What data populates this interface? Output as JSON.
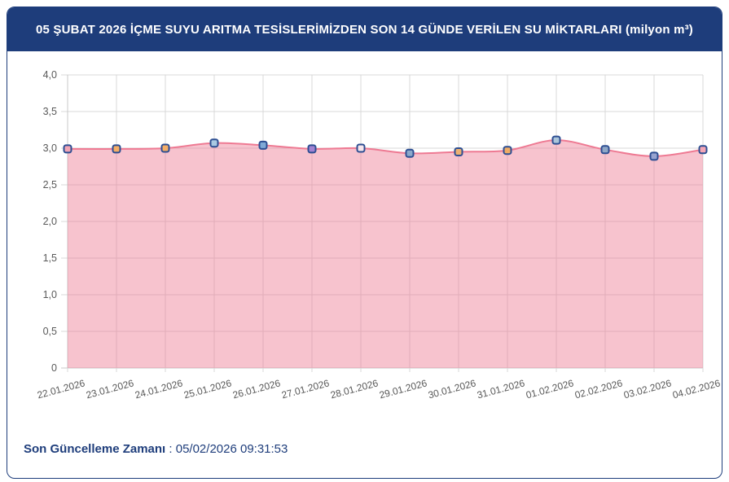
{
  "header": {
    "title": "05 ŞUBAT 2026 İÇME SUYU ARITMA TESİSLERİMİZDEN SON 14 GÜNDE VERİLEN SU MİKTARLARI (milyon m³)"
  },
  "footer": {
    "label": "Son Güncelleme Zamanı",
    "separator": " : ",
    "value": "05/02/2026 09:31:53"
  },
  "colors": {
    "header_bg": "#1e3d7b",
    "header_text": "#ffffff",
    "card_border": "#1e3d7b",
    "line": "#ee7a93",
    "area_fill_opacity": "0.45",
    "grid": "#d9d9d9",
    "axis_line": "#c9c9c9",
    "axis_text": "#595959",
    "marker_border": "#2d4e92",
    "footer_text": "#1e3d7b"
  },
  "chart_data": {
    "type": "area",
    "title": "",
    "xlabel": "",
    "ylabel": "",
    "legend": "none",
    "grid": true,
    "x_label_rotation": -15,
    "categories": [
      "22.01.2026",
      "23.01.2026",
      "24.01.2026",
      "25.01.2026",
      "26.01.2026",
      "27.01.2026",
      "28.01.2026",
      "29.01.2026",
      "30.01.2026",
      "31.01.2026",
      "01.02.2026",
      "02.02.2026",
      "03.02.2026",
      "04.02.2026"
    ],
    "values": [
      2.99,
      2.99,
      3.0,
      3.07,
      3.04,
      2.99,
      3.0,
      2.93,
      2.95,
      2.97,
      3.11,
      2.98,
      2.89,
      2.98
    ],
    "point_colors": [
      "#f2a6b6",
      "#f5ae66",
      "#f5ae66",
      "#a9c9e2",
      "#7fa9d6",
      "#a383d2",
      "#f7e6ec",
      "#8ca9cb",
      "#edb172",
      "#f0ac66",
      "#abc5da",
      "#8ea7c6",
      "#97a3d0",
      "#f4a6b6"
    ],
    "ylim": [
      0,
      4
    ],
    "ytick_labels": [
      "0",
      "0,5",
      "1,0",
      "1,5",
      "2,0",
      "2,5",
      "3,0",
      "3,5",
      "4,0"
    ]
  }
}
